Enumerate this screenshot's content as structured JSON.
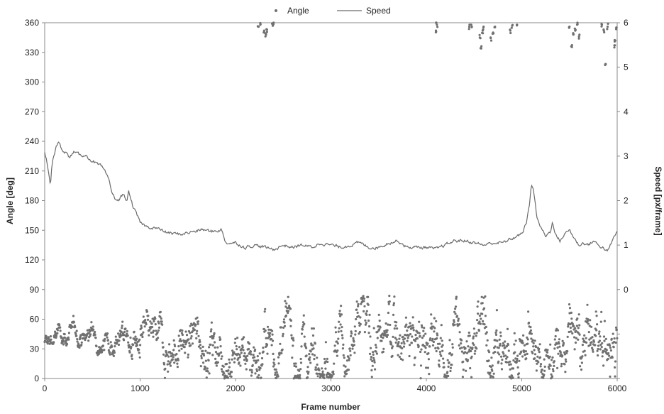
{
  "chart_data": {
    "type": "scatter+line",
    "xlabel": "Frame number",
    "ylabel_left": "Angle [deg]",
    "ylabel_right": "Speed [px/frame]",
    "xlim": [
      0,
      6000
    ],
    "ylim_left": [
      0,
      360
    ],
    "ylim_right": [
      -2,
      6
    ],
    "x_ticks": [
      "0",
      "1000",
      "2000",
      "3000",
      "4000",
      "5000",
      "6000"
    ],
    "y_left_ticks": [
      "0",
      "30",
      "60",
      "90",
      "120",
      "150",
      "180",
      "210",
      "240",
      "270",
      "300",
      "330",
      "360"
    ],
    "y_right_ticks": [
      "0",
      "1",
      "2",
      "3",
      "4",
      "5",
      "6"
    ],
    "legend_position": "top-center",
    "grid": false,
    "series": [
      {
        "name": "Angle",
        "kind": "scatter",
        "axis": "left",
        "color": "#707070",
        "trend": {
          "x": [
            0,
            100,
            200,
            300,
            400,
            500,
            600,
            700,
            800,
            900,
            1000,
            1200,
            1400,
            1600,
            1800,
            2000,
            2200,
            2400,
            2600,
            2800,
            3000,
            3200,
            3400,
            3600,
            3800,
            4000,
            4200,
            4400,
            4600,
            4800,
            5000,
            5200,
            5400,
            5600,
            5800,
            6000
          ],
          "y": [
            33,
            42,
            45,
            44,
            43,
            46,
            44,
            40,
            45,
            38,
            33,
            34,
            32,
            38,
            34,
            32,
            30,
            28,
            34,
            33,
            32,
            36,
            42,
            38,
            35,
            30,
            34,
            38,
            42,
            36,
            30,
            18,
            28,
            35,
            30,
            40
          ],
          "spread": [
            5,
            5,
            5,
            5,
            5,
            5,
            5,
            6,
            7,
            9,
            10,
            10,
            12,
            12,
            12,
            13,
            14,
            15,
            15,
            15,
            15,
            17,
            17,
            16,
            16,
            15,
            16,
            17,
            18,
            17,
            15,
            12,
            15,
            16,
            17,
            20
          ]
        },
        "wrapped_points": [
          {
            "x": 2240,
            "y": 356
          },
          {
            "x": 2260,
            "y": 358
          },
          {
            "x": 2300,
            "y": 352
          },
          {
            "x": 2320,
            "y": 348
          },
          {
            "x": 2330,
            "y": 353
          },
          {
            "x": 2390,
            "y": 357
          },
          {
            "x": 2400,
            "y": 360
          },
          {
            "x": 4100,
            "y": 352
          },
          {
            "x": 4110,
            "y": 358
          },
          {
            "x": 4105,
            "y": 360
          },
          {
            "x": 4450,
            "y": 356
          },
          {
            "x": 4470,
            "y": 358
          },
          {
            "x": 4560,
            "y": 345
          },
          {
            "x": 4575,
            "y": 334
          },
          {
            "x": 4590,
            "y": 352
          },
          {
            "x": 4600,
            "y": 356
          },
          {
            "x": 4680,
            "y": 342
          },
          {
            "x": 4700,
            "y": 350
          },
          {
            "x": 4720,
            "y": 356
          },
          {
            "x": 4880,
            "y": 352
          },
          {
            "x": 4900,
            "y": 357
          },
          {
            "x": 4950,
            "y": 358
          },
          {
            "x": 5500,
            "y": 356
          },
          {
            "x": 5520,
            "y": 336
          },
          {
            "x": 5540,
            "y": 348
          },
          {
            "x": 5560,
            "y": 352
          },
          {
            "x": 5580,
            "y": 358
          },
          {
            "x": 5600,
            "y": 346
          },
          {
            "x": 5840,
            "y": 358
          },
          {
            "x": 5860,
            "y": 352
          },
          {
            "x": 5880,
            "y": 318
          },
          {
            "x": 5900,
            "y": 356
          },
          {
            "x": 5970,
            "y": 335
          },
          {
            "x": 5980,
            "y": 342
          },
          {
            "x": 5990,
            "y": 355
          }
        ]
      },
      {
        "name": "Speed",
        "kind": "line",
        "axis": "right",
        "color": "#6a6a6a",
        "x": [
          0,
          30,
          60,
          75,
          90,
          120,
          150,
          180,
          220,
          260,
          300,
          340,
          380,
          420,
          460,
          500,
          560,
          600,
          640,
          680,
          700,
          740,
          780,
          820,
          860,
          880,
          920,
          960,
          1000,
          1040,
          1080,
          1150,
          1250,
          1350,
          1450,
          1550,
          1650,
          1750,
          1850,
          1900,
          2000,
          2100,
          2200,
          2300,
          2400,
          2500,
          2600,
          2700,
          2800,
          2900,
          3000,
          3100,
          3200,
          3300,
          3400,
          3500,
          3600,
          3700,
          3800,
          3900,
          4000,
          4100,
          4200,
          4300,
          4400,
          4500,
          4600,
          4700,
          4800,
          4900,
          5000,
          5050,
          5080,
          5100,
          5120,
          5140,
          5160,
          5200,
          5250,
          5300,
          5320,
          5350,
          5400,
          5450,
          5500,
          5550,
          5600,
          5650,
          5700,
          5750,
          5800,
          5850,
          5900,
          5950,
          6000
        ],
        "y": [
          3.1,
          2.8,
          2.3,
          2.8,
          3.0,
          3.2,
          3.3,
          3.15,
          3.1,
          2.95,
          3.1,
          3.05,
          3.0,
          3.05,
          2.95,
          2.9,
          2.8,
          2.75,
          2.6,
          2.4,
          2.2,
          2.05,
          2.0,
          2.15,
          2.0,
          2.2,
          1.9,
          1.7,
          1.5,
          1.45,
          1.4,
          1.4,
          1.3,
          1.25,
          1.25,
          1.3,
          1.35,
          1.3,
          1.35,
          1.05,
          1.05,
          0.95,
          1.0,
          0.95,
          0.9,
          1.0,
          0.95,
          1.0,
          0.95,
          1.05,
          1.0,
          0.95,
          1.0,
          1.05,
          0.95,
          0.95,
          1.05,
          1.1,
          0.95,
          0.95,
          0.95,
          0.9,
          1.0,
          1.1,
          1.1,
          1.05,
          1.0,
          1.05,
          1.05,
          1.15,
          1.25,
          1.5,
          1.9,
          2.4,
          2.25,
          2.0,
          1.6,
          1.4,
          1.2,
          1.3,
          1.55,
          1.25,
          1.1,
          1.25,
          1.35,
          1.15,
          1.0,
          1.05,
          1.0,
          1.1,
          1.0,
          0.95,
          0.85,
          1.1,
          1.3
        ]
      }
    ]
  }
}
